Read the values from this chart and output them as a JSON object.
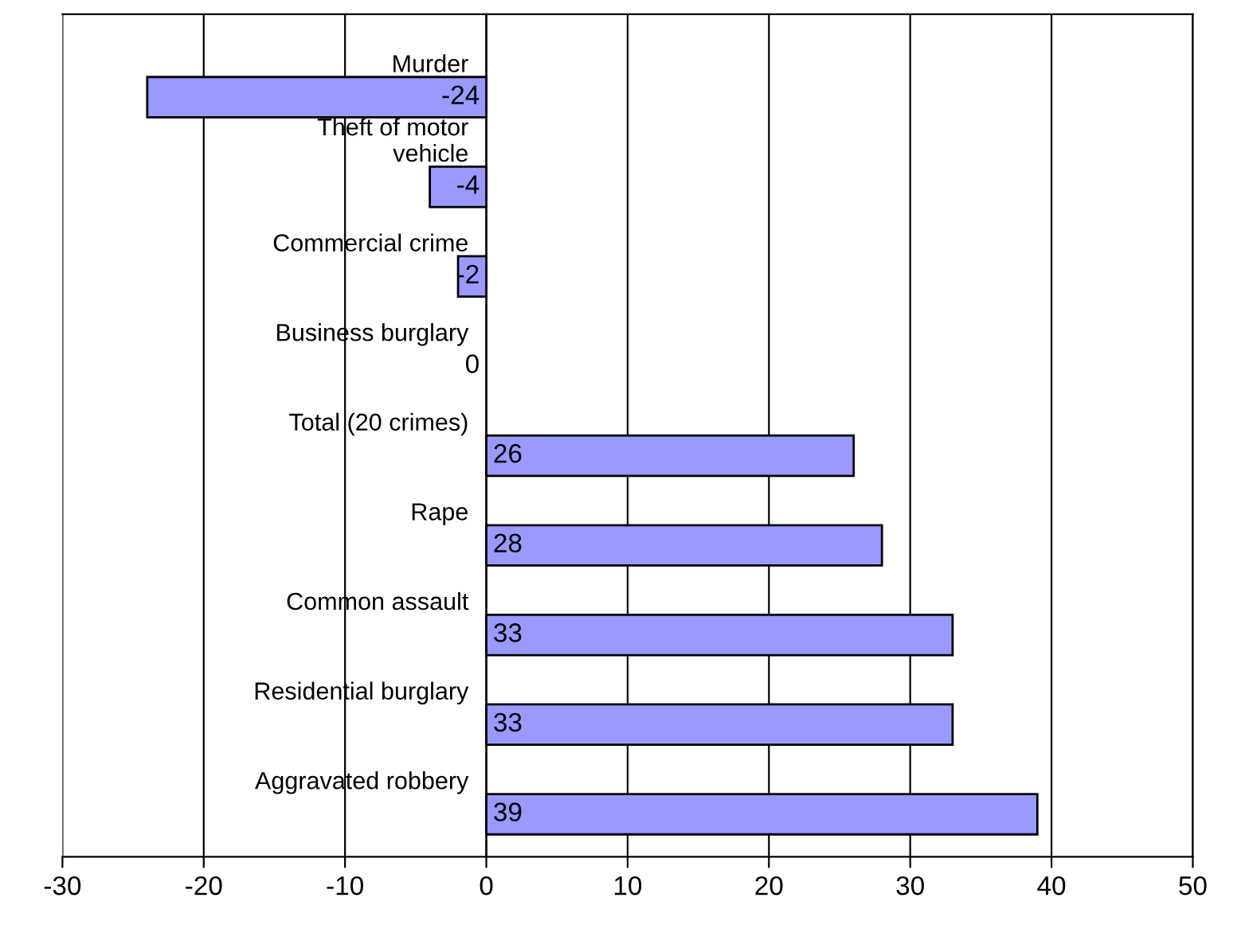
{
  "chart_data": {
    "type": "bar",
    "orientation": "horizontal",
    "categories": [
      "Murder",
      "Theft of motor\nvehicle",
      "Commercial crime",
      "Business burglary",
      "Total (20 crimes)",
      "Rape",
      "Common assault",
      "Residential burglary",
      "Aggravated robbery"
    ],
    "values": [
      -24,
      -4,
      -2,
      0,
      26,
      28,
      33,
      33,
      39
    ],
    "color": "#9999ff",
    "xlim": [
      -30,
      50
    ],
    "xticks": [
      -30,
      -20,
      -10,
      0,
      10,
      20,
      30,
      40,
      50
    ],
    "grid": "x",
    "data_labels": true
  }
}
